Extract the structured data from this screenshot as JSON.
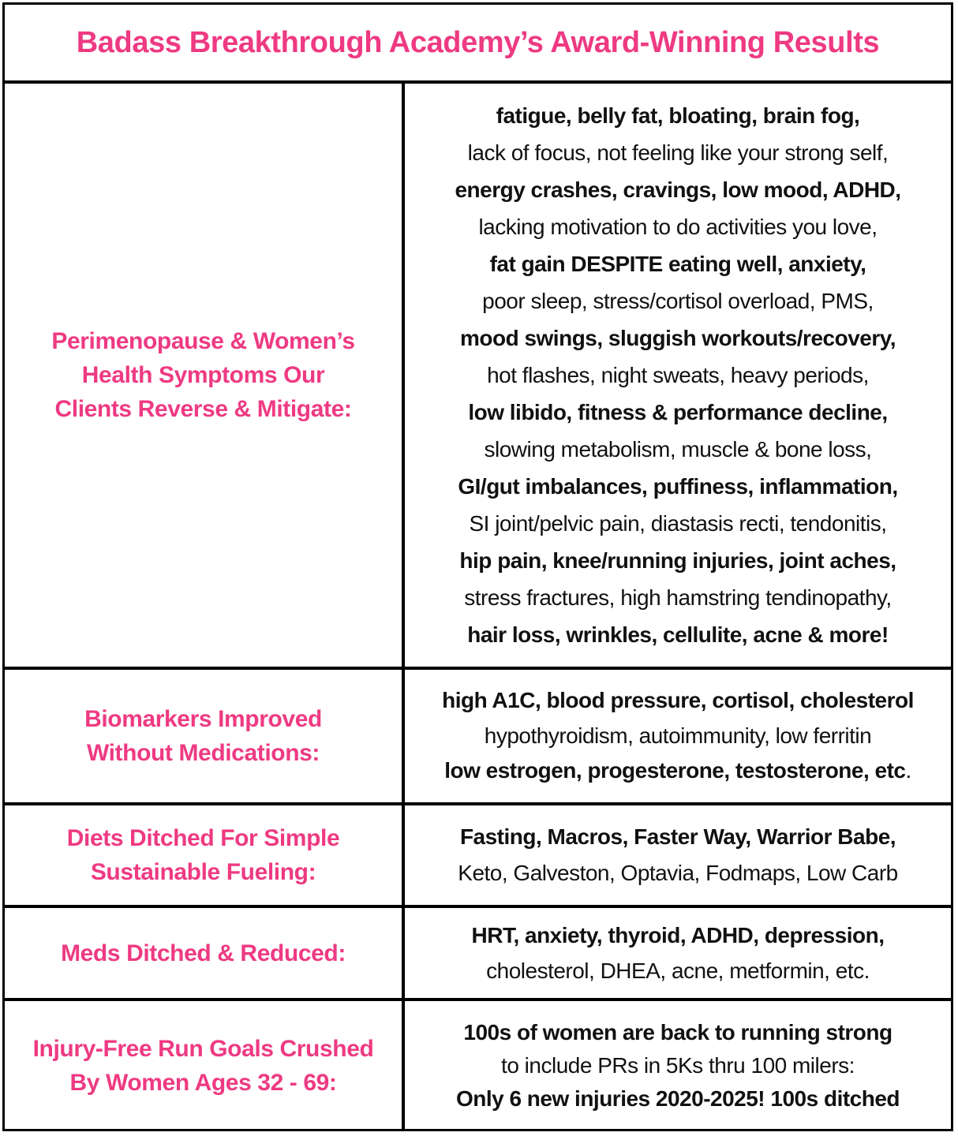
{
  "title": "Badass Breakthrough Academy’s Award-Winning Results",
  "accent_color": "#ee3a82",
  "rows": [
    {
      "label": "Perimenopause & Women’s\nHealth Symptoms Our\nClients Reverse & Mitigate:",
      "lines": [
        {
          "text": "fatigue, belly fat, bloating, brain fog,",
          "bold": true
        },
        {
          "text": "lack of focus, not feeling like your strong self,",
          "bold": false
        },
        {
          "text": "energy crashes, cravings, low mood, ADHD,",
          "bold": true
        },
        {
          "text": "lacking motivation to do activities you love,",
          "bold": false
        },
        {
          "text": "fat gain DESPITE eating well, anxiety,",
          "bold": true
        },
        {
          "text": "poor sleep, stress/cortisol overload, PMS,",
          "bold": false
        },
        {
          "text": "mood swings, sluggish workouts/recovery,",
          "bold": true
        },
        {
          "text": "hot flashes, night sweats, heavy periods,",
          "bold": false
        },
        {
          "text": "low libido, fitness & performance decline,",
          "bold": true
        },
        {
          "text": "slowing metabolism, muscle & bone loss,",
          "bold": false
        },
        {
          "text": "GI/gut imbalances, puffiness, inflammation,",
          "bold": true
        },
        {
          "text": "SI joint/pelvic pain, diastasis recti, tendonitis,",
          "bold": false
        },
        {
          "text": "hip pain, knee/running injuries, joint aches,",
          "bold": true
        },
        {
          "text": "stress fractures, high hamstring tendinopathy,",
          "bold": false
        },
        {
          "text": "hair loss, wrinkles, cellulite, acne & more!",
          "bold": true
        }
      ]
    },
    {
      "label": "Biomarkers Improved\nWithout Medications:",
      "lines": [
        {
          "text": "high A1C, blood pressure, cortisol, cholesterol",
          "bold": true
        },
        {
          "text": "hypothyroidism, autoimmunity, low ferritin",
          "bold": false
        },
        {
          "text": "low estrogen, progesterone, testosterone, etc",
          "bold": true,
          "tail": "."
        }
      ]
    },
    {
      "label": "Diets Ditched For Simple\nSustainable Fueling:",
      "lines": [
        {
          "text": "Fasting, Macros, Faster Way, Warrior Babe,",
          "bold": true
        },
        {
          "text": "Keto, Galveston, Optavia, Fodmaps, Low Carb",
          "bold": false
        }
      ]
    },
    {
      "label": "Meds Ditched & Reduced:",
      "lines": [
        {
          "text": "HRT, anxiety, thyroid, ADHD, depression,",
          "bold": true
        },
        {
          "text": "cholesterol, DHEA, acne, metformin, etc.",
          "bold": false
        }
      ]
    },
    {
      "label": "Injury-Free Run Goals Crushed\nBy Women Ages 32 - 69:",
      "lines": [
        {
          "text": "100s of women are back to running strong",
          "bold": true
        },
        {
          "text": "to include PRs in 5Ks thru 100 milers:",
          "bold": false
        },
        {
          "text": "Only 6 new injuries 2020-2025! 100s ditched",
          "bold": true
        }
      ]
    }
  ]
}
